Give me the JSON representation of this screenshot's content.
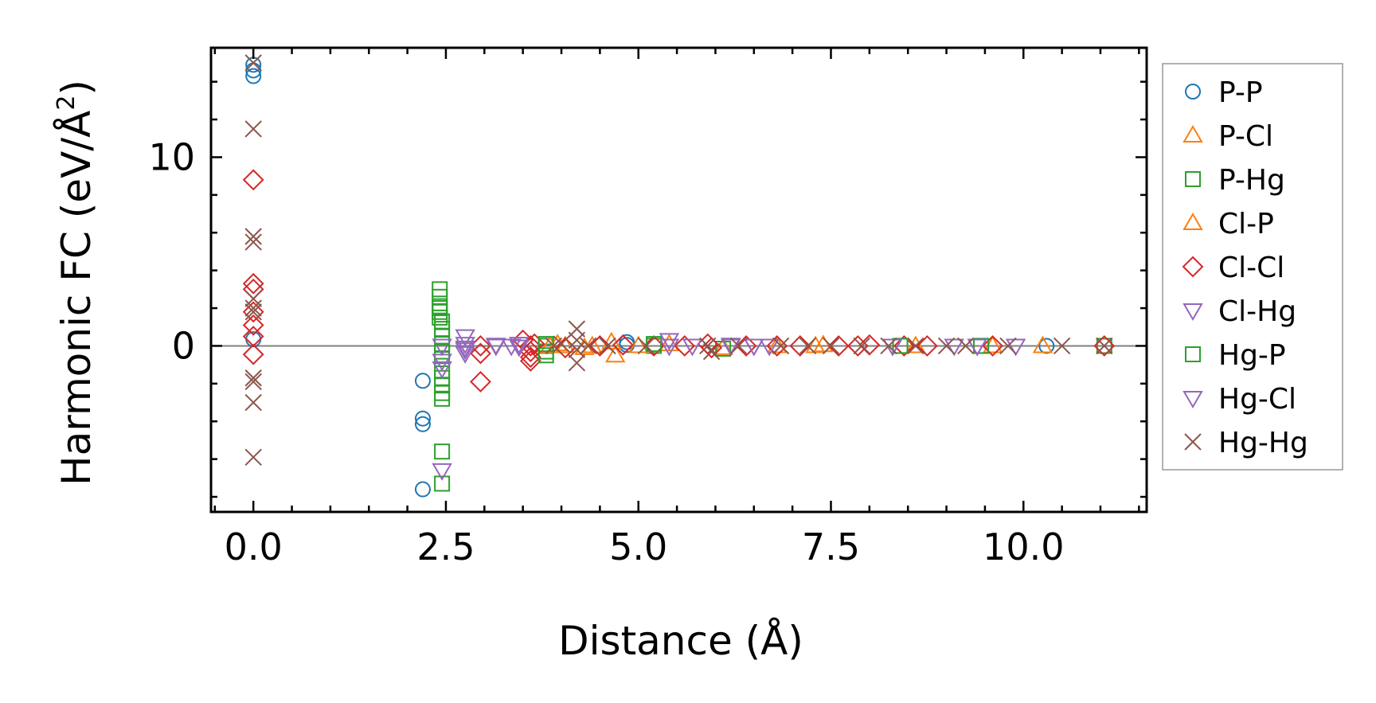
{
  "chart_data": {
    "type": "scatter",
    "xlabel": "Distance (Å)",
    "ylabel_main": "Harmonic FC (eV/Å",
    "ylabel_sup": "2",
    "ylabel_close": ")",
    "xlim": [
      -0.55,
      11.6
    ],
    "ylim": [
      -8.8,
      15.8
    ],
    "x_ticks": [
      0.0,
      2.5,
      5.0,
      7.5,
      10.0
    ],
    "x_tick_labels": [
      "0.0",
      "2.5",
      "5.0",
      "7.5",
      "10.0"
    ],
    "y_ticks": [
      0,
      10
    ],
    "y_tick_labels": [
      "0",
      "10"
    ],
    "x_minor_step": 0.5,
    "y_minor_step": 2,
    "zero_line": true,
    "grid": false,
    "legend_position": "outside-right",
    "series": [
      {
        "name": "P-P",
        "marker": "circle",
        "color": "#1f77b4",
        "points": [
          [
            0,
            14.9
          ],
          [
            0,
            14.6
          ],
          [
            0,
            14.3
          ],
          [
            0,
            0.35
          ],
          [
            2.2,
            -1.85
          ],
          [
            2.2,
            -3.85
          ],
          [
            2.2,
            -4.15
          ],
          [
            2.2,
            -7.6
          ],
          [
            4.85,
            0.2
          ],
          [
            4.85,
            0.05
          ],
          [
            10.3,
            0
          ]
        ]
      },
      {
        "name": "P-Cl",
        "marker": "triangle-up",
        "color": "#ff7f0e",
        "points": [
          [
            4.05,
            0
          ],
          [
            4.3,
            -0.1
          ],
          [
            4.65,
            0.2
          ],
          [
            4.7,
            -0.5
          ],
          [
            5.4,
            0.1
          ],
          [
            6.1,
            -0.1
          ],
          [
            7.4,
            0.05
          ],
          [
            9.6,
            0
          ],
          [
            10.25,
            0
          ]
        ]
      },
      {
        "name": "P-Hg",
        "marker": "square",
        "color": "#2ca02c",
        "points": [
          [
            2.42,
            3.0
          ],
          [
            2.42,
            2.6
          ],
          [
            2.42,
            2.1
          ],
          [
            2.42,
            1.8
          ],
          [
            2.45,
            1.3
          ],
          [
            2.45,
            0.9
          ],
          [
            2.45,
            0.5
          ],
          [
            2.45,
            0.1
          ],
          [
            2.45,
            -0.7
          ],
          [
            2.45,
            -1.3
          ],
          [
            2.45,
            -1.7
          ],
          [
            2.45,
            -2.1
          ],
          [
            2.45,
            -2.5
          ],
          [
            2.45,
            -2.8
          ],
          [
            2.45,
            -5.6
          ],
          [
            2.45,
            -7.3
          ],
          [
            3.8,
            0
          ],
          [
            3.8,
            -0.3
          ],
          [
            5.2,
            0
          ],
          [
            6.1,
            -0.15
          ],
          [
            8.4,
            0
          ],
          [
            9.45,
            0
          ],
          [
            11.05,
            0
          ]
        ]
      },
      {
        "name": "Cl-P",
        "marker": "triangle-up",
        "color": "#ff7f0e",
        "points": [
          [
            3.85,
            0
          ],
          [
            3.95,
            0.1
          ],
          [
            4.4,
            0
          ],
          [
            5.0,
            0
          ],
          [
            6.8,
            0
          ],
          [
            7.3,
            0
          ],
          [
            8.6,
            0
          ]
        ]
      },
      {
        "name": "Cl-Cl",
        "marker": "diamond",
        "color": "#d62728",
        "points": [
          [
            0,
            8.8
          ],
          [
            0,
            3.3
          ],
          [
            0,
            3.0
          ],
          [
            0,
            1.8
          ],
          [
            0,
            1.1
          ],
          [
            0,
            0.5
          ],
          [
            0,
            -0.45
          ],
          [
            2.95,
            0
          ],
          [
            2.95,
            -0.4
          ],
          [
            2.95,
            -1.9
          ],
          [
            3.5,
            0.3
          ],
          [
            3.6,
            0
          ],
          [
            3.6,
            -0.3
          ],
          [
            3.6,
            -0.6
          ],
          [
            3.6,
            -0.8
          ],
          [
            3.65,
            0.1
          ],
          [
            4.05,
            -0.1
          ],
          [
            4.5,
            0
          ],
          [
            4.8,
            0.05
          ],
          [
            5.2,
            0
          ],
          [
            5.6,
            0
          ],
          [
            5.9,
            0.1
          ],
          [
            5.95,
            -0.1
          ],
          [
            6.4,
            0
          ],
          [
            6.8,
            0
          ],
          [
            7.1,
            0
          ],
          [
            7.6,
            0
          ],
          [
            7.85,
            0
          ],
          [
            8.0,
            0.05
          ],
          [
            8.45,
            0
          ],
          [
            8.75,
            0
          ],
          [
            9.6,
            0
          ],
          [
            11.05,
            0
          ]
        ]
      },
      {
        "name": "Cl-Hg",
        "marker": "triangle-down",
        "color": "#9467bd",
        "points": [
          [
            2.45,
            0.0
          ],
          [
            2.45,
            -1.2
          ],
          [
            2.45,
            -6.6
          ],
          [
            2.75,
            0.5
          ],
          [
            2.75,
            0.1
          ],
          [
            2.75,
            -0.1
          ],
          [
            2.75,
            -0.4
          ],
          [
            3.15,
            0
          ],
          [
            3.35,
            0
          ],
          [
            3.45,
            0.1
          ],
          [
            5.4,
            0.3
          ],
          [
            5.7,
            0
          ],
          [
            6.2,
            0
          ],
          [
            6.5,
            0
          ],
          [
            6.7,
            0
          ],
          [
            8.3,
            0
          ],
          [
            9.1,
            0
          ],
          [
            9.4,
            0
          ],
          [
            9.9,
            0
          ]
        ]
      },
      {
        "name": "Hg-P",
        "marker": "square",
        "color": "#2ca02c",
        "points": [
          [
            2.42,
            2.0
          ],
          [
            2.42,
            1.5
          ],
          [
            2.45,
            -0.3
          ],
          [
            3.8,
            0.1
          ],
          [
            3.8,
            -0.5
          ],
          [
            5.2,
            0.1
          ],
          [
            8.4,
            0
          ],
          [
            9.45,
            0
          ]
        ]
      },
      {
        "name": "Hg-Cl",
        "marker": "triangle-down",
        "color": "#9467bd",
        "points": [
          [
            2.45,
            -0.8
          ],
          [
            2.75,
            -0.2
          ],
          [
            3.15,
            0.05
          ],
          [
            3.45,
            -0.05
          ],
          [
            5.4,
            0
          ],
          [
            6.2,
            0.05
          ],
          [
            6.5,
            0
          ],
          [
            8.3,
            0
          ],
          [
            9.4,
            0
          ]
        ]
      },
      {
        "name": "Hg-Hg",
        "marker": "x",
        "color": "#8c564b",
        "points": [
          [
            0,
            15.0
          ],
          [
            0,
            11.5
          ],
          [
            0,
            5.8
          ],
          [
            0,
            5.5
          ],
          [
            0,
            2.5
          ],
          [
            0,
            2.0
          ],
          [
            0,
            1.8
          ],
          [
            0,
            -1.7
          ],
          [
            0,
            -1.9
          ],
          [
            0,
            -3.0
          ],
          [
            0,
            -5.9
          ],
          [
            3.9,
            0
          ],
          [
            4.0,
            0.1
          ],
          [
            4.2,
            0.9
          ],
          [
            4.2,
            0.3
          ],
          [
            4.2,
            -0.2
          ],
          [
            4.2,
            -0.9
          ],
          [
            4.35,
            0
          ],
          [
            4.6,
            0
          ],
          [
            5.1,
            0
          ],
          [
            5.9,
            0
          ],
          [
            5.95,
            -0.3
          ],
          [
            6.3,
            0
          ],
          [
            6.85,
            0
          ],
          [
            7.2,
            0
          ],
          [
            7.5,
            0
          ],
          [
            7.9,
            0
          ],
          [
            8.25,
            0
          ],
          [
            8.6,
            0
          ],
          [
            9.0,
            0
          ],
          [
            9.25,
            0
          ],
          [
            9.8,
            0
          ],
          [
            10.5,
            0
          ],
          [
            11.05,
            0
          ]
        ]
      }
    ]
  }
}
